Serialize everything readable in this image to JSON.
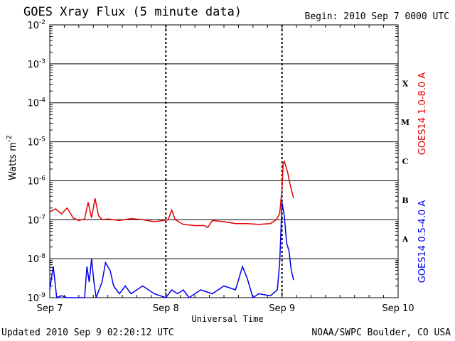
{
  "title": "GOES Xray Flux (5 minute data)",
  "begin_label": "Begin:  2010 Sep 7 0000 UTC",
  "updated_label": "Updated 2010 Sep  9 02:20:12 UTC",
  "credit_label": "NOAA/SWPC Boulder, CO USA",
  "chart_data": {
    "type": "line",
    "xlabel": "Universal Time",
    "ylabel": "Watts m-2",
    "ylabel_main": "Watts m",
    "ylabel_sup": "-2",
    "xlim_days": [
      0,
      3
    ],
    "x_ticks": [
      "Sep 7",
      "Sep 8",
      "Sep 9",
      "Sep 10"
    ],
    "ylim_exp": [
      -9,
      -2
    ],
    "y_scale": "log",
    "y_tick_exps": [
      -9,
      -8,
      -7,
      -6,
      -5,
      -4,
      -3,
      -2
    ],
    "y_tick_labels": [
      "-9",
      "-8",
      "-7",
      "-6",
      "-5",
      "-4",
      "-3",
      "-2"
    ],
    "y_tick_base": "10",
    "flare_classes": [
      {
        "label": "A",
        "exp": -7.5
      },
      {
        "label": "B",
        "exp": -6.5
      },
      {
        "label": "C",
        "exp": -5.5
      },
      {
        "label": "M",
        "exp": -4.5
      },
      {
        "label": "X",
        "exp": -3.5
      }
    ],
    "grid": "horizontal at each decade, dashed verticals at day boundaries",
    "series": [
      {
        "name": "GOES14 1.0-8.0 A",
        "color": "#e00000",
        "points": [
          [
            0.0,
            -6.8
          ],
          [
            0.05,
            -6.72
          ],
          [
            0.1,
            -6.85
          ],
          [
            0.15,
            -6.7
          ],
          [
            0.2,
            -6.95
          ],
          [
            0.25,
            -7.02
          ],
          [
            0.3,
            -6.98
          ],
          [
            0.33,
            -6.55
          ],
          [
            0.36,
            -6.95
          ],
          [
            0.39,
            -6.45
          ],
          [
            0.42,
            -6.9
          ],
          [
            0.45,
            -7.0
          ],
          [
            0.5,
            -6.98
          ],
          [
            0.6,
            -7.02
          ],
          [
            0.7,
            -6.97
          ],
          [
            0.8,
            -7.0
          ],
          [
            0.9,
            -7.05
          ],
          [
            0.98,
            -7.02
          ],
          [
            1.02,
            -7.0
          ],
          [
            1.05,
            -6.75
          ],
          [
            1.08,
            -7.0
          ],
          [
            1.15,
            -7.12
          ],
          [
            1.25,
            -7.15
          ],
          [
            1.33,
            -7.15
          ],
          [
            1.36,
            -7.2
          ],
          [
            1.4,
            -7.02
          ],
          [
            1.5,
            -7.05
          ],
          [
            1.6,
            -7.1
          ],
          [
            1.7,
            -7.1
          ],
          [
            1.8,
            -7.12
          ],
          [
            1.9,
            -7.1
          ],
          [
            1.95,
            -7.0
          ],
          [
            1.98,
            -6.85
          ],
          [
            2.0,
            -6.2
          ],
          [
            2.01,
            -5.55
          ],
          [
            2.02,
            -5.5
          ],
          [
            2.03,
            -5.6
          ],
          [
            2.05,
            -5.8
          ],
          [
            2.07,
            -6.1
          ],
          [
            2.1,
            -6.45
          ]
        ]
      },
      {
        "name": "GOES14 0.5-4.0 A",
        "color": "#0000ee",
        "points": [
          [
            0.0,
            -8.8
          ],
          [
            0.03,
            -8.2
          ],
          [
            0.06,
            -9.0
          ],
          [
            0.1,
            -8.95
          ],
          [
            0.15,
            -9.0
          ],
          [
            0.2,
            -9.0
          ],
          [
            0.3,
            -9.0
          ],
          [
            0.32,
            -8.2
          ],
          [
            0.34,
            -8.6
          ],
          [
            0.36,
            -8.0
          ],
          [
            0.38,
            -8.6
          ],
          [
            0.4,
            -9.0
          ],
          [
            0.45,
            -8.6
          ],
          [
            0.48,
            -8.1
          ],
          [
            0.52,
            -8.3
          ],
          [
            0.55,
            -8.7
          ],
          [
            0.6,
            -8.9
          ],
          [
            0.65,
            -8.7
          ],
          [
            0.7,
            -8.9
          ],
          [
            0.8,
            -8.7
          ],
          [
            0.9,
            -8.9
          ],
          [
            1.0,
            -9.0
          ],
          [
            1.05,
            -8.8
          ],
          [
            1.1,
            -8.9
          ],
          [
            1.15,
            -8.8
          ],
          [
            1.2,
            -9.0
          ],
          [
            1.3,
            -8.8
          ],
          [
            1.4,
            -8.9
          ],
          [
            1.5,
            -8.7
          ],
          [
            1.6,
            -8.8
          ],
          [
            1.66,
            -8.2
          ],
          [
            1.7,
            -8.5
          ],
          [
            1.75,
            -9.0
          ],
          [
            1.8,
            -8.9
          ],
          [
            1.9,
            -8.95
          ],
          [
            1.96,
            -8.8
          ],
          [
            1.98,
            -8.1
          ],
          [
            2.0,
            -6.55
          ],
          [
            2.02,
            -6.9
          ],
          [
            2.04,
            -7.6
          ],
          [
            2.06,
            -7.8
          ],
          [
            2.08,
            -8.3
          ],
          [
            2.1,
            -8.55
          ]
        ]
      }
    ]
  }
}
